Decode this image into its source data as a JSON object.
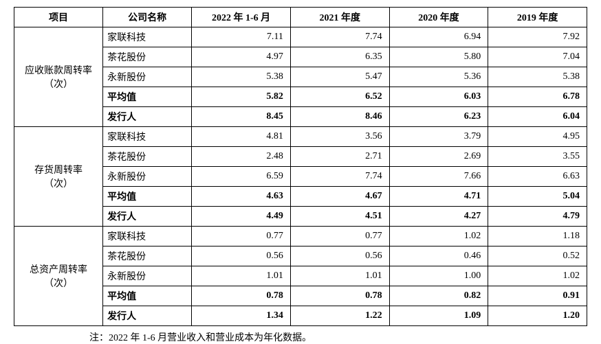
{
  "header": {
    "project": "项目",
    "company": "公司名称",
    "periods": [
      "2022 年 1-6 月",
      "2021 年度",
      "2020 年度",
      "2019 年度"
    ]
  },
  "row_labels": {
    "avg": "平均值",
    "issuer": "发行人"
  },
  "companies": [
    "家联科技",
    "茶花股份",
    "永新股份"
  ],
  "sections": [
    {
      "title": "应收账款周转率\n（次）",
      "rows": [
        {
          "name_key": "companies.0",
          "vals": [
            "7.11",
            "7.74",
            "6.94",
            "7.92"
          ],
          "bold": false
        },
        {
          "name_key": "companies.1",
          "vals": [
            "4.97",
            "6.35",
            "5.80",
            "7.04"
          ],
          "bold": false
        },
        {
          "name_key": "companies.2",
          "vals": [
            "5.38",
            "5.47",
            "5.36",
            "5.38"
          ],
          "bold": false
        },
        {
          "name_key": "row_labels.avg",
          "vals": [
            "5.82",
            "6.52",
            "6.03",
            "6.78"
          ],
          "bold": true
        },
        {
          "name_key": "row_labels.issuer",
          "vals": [
            "8.45",
            "8.46",
            "6.23",
            "6.04"
          ],
          "bold": true
        }
      ]
    },
    {
      "title": "存货周转率\n（次）",
      "rows": [
        {
          "name_key": "companies.0",
          "vals": [
            "4.81",
            "3.56",
            "3.79",
            "4.95"
          ],
          "bold": false
        },
        {
          "name_key": "companies.1",
          "vals": [
            "2.48",
            "2.71",
            "2.69",
            "3.55"
          ],
          "bold": false
        },
        {
          "name_key": "companies.2",
          "vals": [
            "6.59",
            "7.74",
            "7.66",
            "6.63"
          ],
          "bold": false
        },
        {
          "name_key": "row_labels.avg",
          "vals": [
            "4.63",
            "4.67",
            "4.71",
            "5.04"
          ],
          "bold": true
        },
        {
          "name_key": "row_labels.issuer",
          "vals": [
            "4.49",
            "4.51",
            "4.27",
            "4.79"
          ],
          "bold": true
        }
      ]
    },
    {
      "title": "总资产周转率\n（次）",
      "rows": [
        {
          "name_key": "companies.0",
          "vals": [
            "0.77",
            "0.77",
            "1.02",
            "1.18"
          ],
          "bold": false
        },
        {
          "name_key": "companies.1",
          "vals": [
            "0.56",
            "0.56",
            "0.46",
            "0.52"
          ],
          "bold": false
        },
        {
          "name_key": "companies.2",
          "vals": [
            "1.01",
            "1.01",
            "1.00",
            "1.02"
          ],
          "bold": false
        },
        {
          "name_key": "row_labels.avg",
          "vals": [
            "0.78",
            "0.78",
            "0.82",
            "0.91"
          ],
          "bold": true
        },
        {
          "name_key": "row_labels.issuer",
          "vals": [
            "1.34",
            "1.22",
            "1.09",
            "1.20"
          ],
          "bold": true
        }
      ]
    }
  ],
  "note": "注：2022 年 1-6 月营业收入和营业成本为年化数据。"
}
